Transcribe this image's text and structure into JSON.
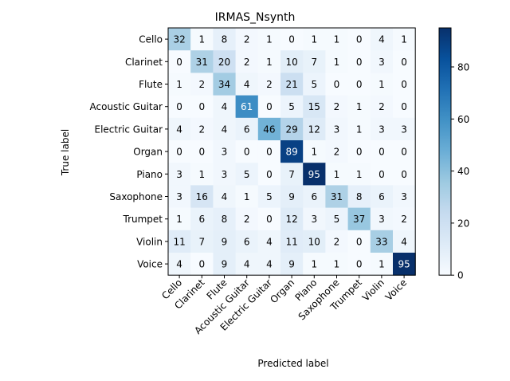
{
  "chart_data": {
    "type": "heatmap",
    "title": "IRMAS_Nsynth",
    "xlabel": "Predicted label",
    "ylabel": "True label",
    "labels": [
      "Cello",
      "Clarinet",
      "Flute",
      "Acoustic Guitar",
      "Electric Guitar",
      "Organ",
      "Piano",
      "Saxophone",
      "Trumpet",
      "Violin",
      "Voice"
    ],
    "matrix": [
      [
        32,
        1,
        8,
        2,
        1,
        0,
        1,
        1,
        0,
        4,
        1
      ],
      [
        0,
        31,
        20,
        2,
        1,
        10,
        7,
        1,
        0,
        3,
        0
      ],
      [
        1,
        2,
        34,
        4,
        2,
        21,
        5,
        0,
        0,
        1,
        0
      ],
      [
        0,
        0,
        4,
        61,
        0,
        5,
        15,
        2,
        1,
        2,
        0
      ],
      [
        4,
        2,
        4,
        6,
        46,
        29,
        12,
        3,
        1,
        3,
        3
      ],
      [
        0,
        0,
        3,
        0,
        0,
        89,
        1,
        2,
        0,
        0,
        0
      ],
      [
        3,
        1,
        3,
        5,
        0,
        7,
        95,
        1,
        1,
        0,
        0
      ],
      [
        3,
        16,
        4,
        1,
        5,
        9,
        6,
        31,
        8,
        6,
        3
      ],
      [
        1,
        6,
        8,
        2,
        0,
        12,
        3,
        5,
        37,
        3,
        2
      ],
      [
        11,
        7,
        9,
        6,
        4,
        11,
        10,
        2,
        0,
        33,
        4
      ],
      [
        4,
        0,
        9,
        4,
        4,
        9,
        1,
        1,
        0,
        1,
        95
      ]
    ],
    "colormap": "Blues",
    "vmin": 0,
    "vmax": 95,
    "colorbar_ticks": [
      0,
      20,
      40,
      60,
      80
    ],
    "text_color_light": "#ffffff",
    "text_color_dark": "#000000"
  }
}
